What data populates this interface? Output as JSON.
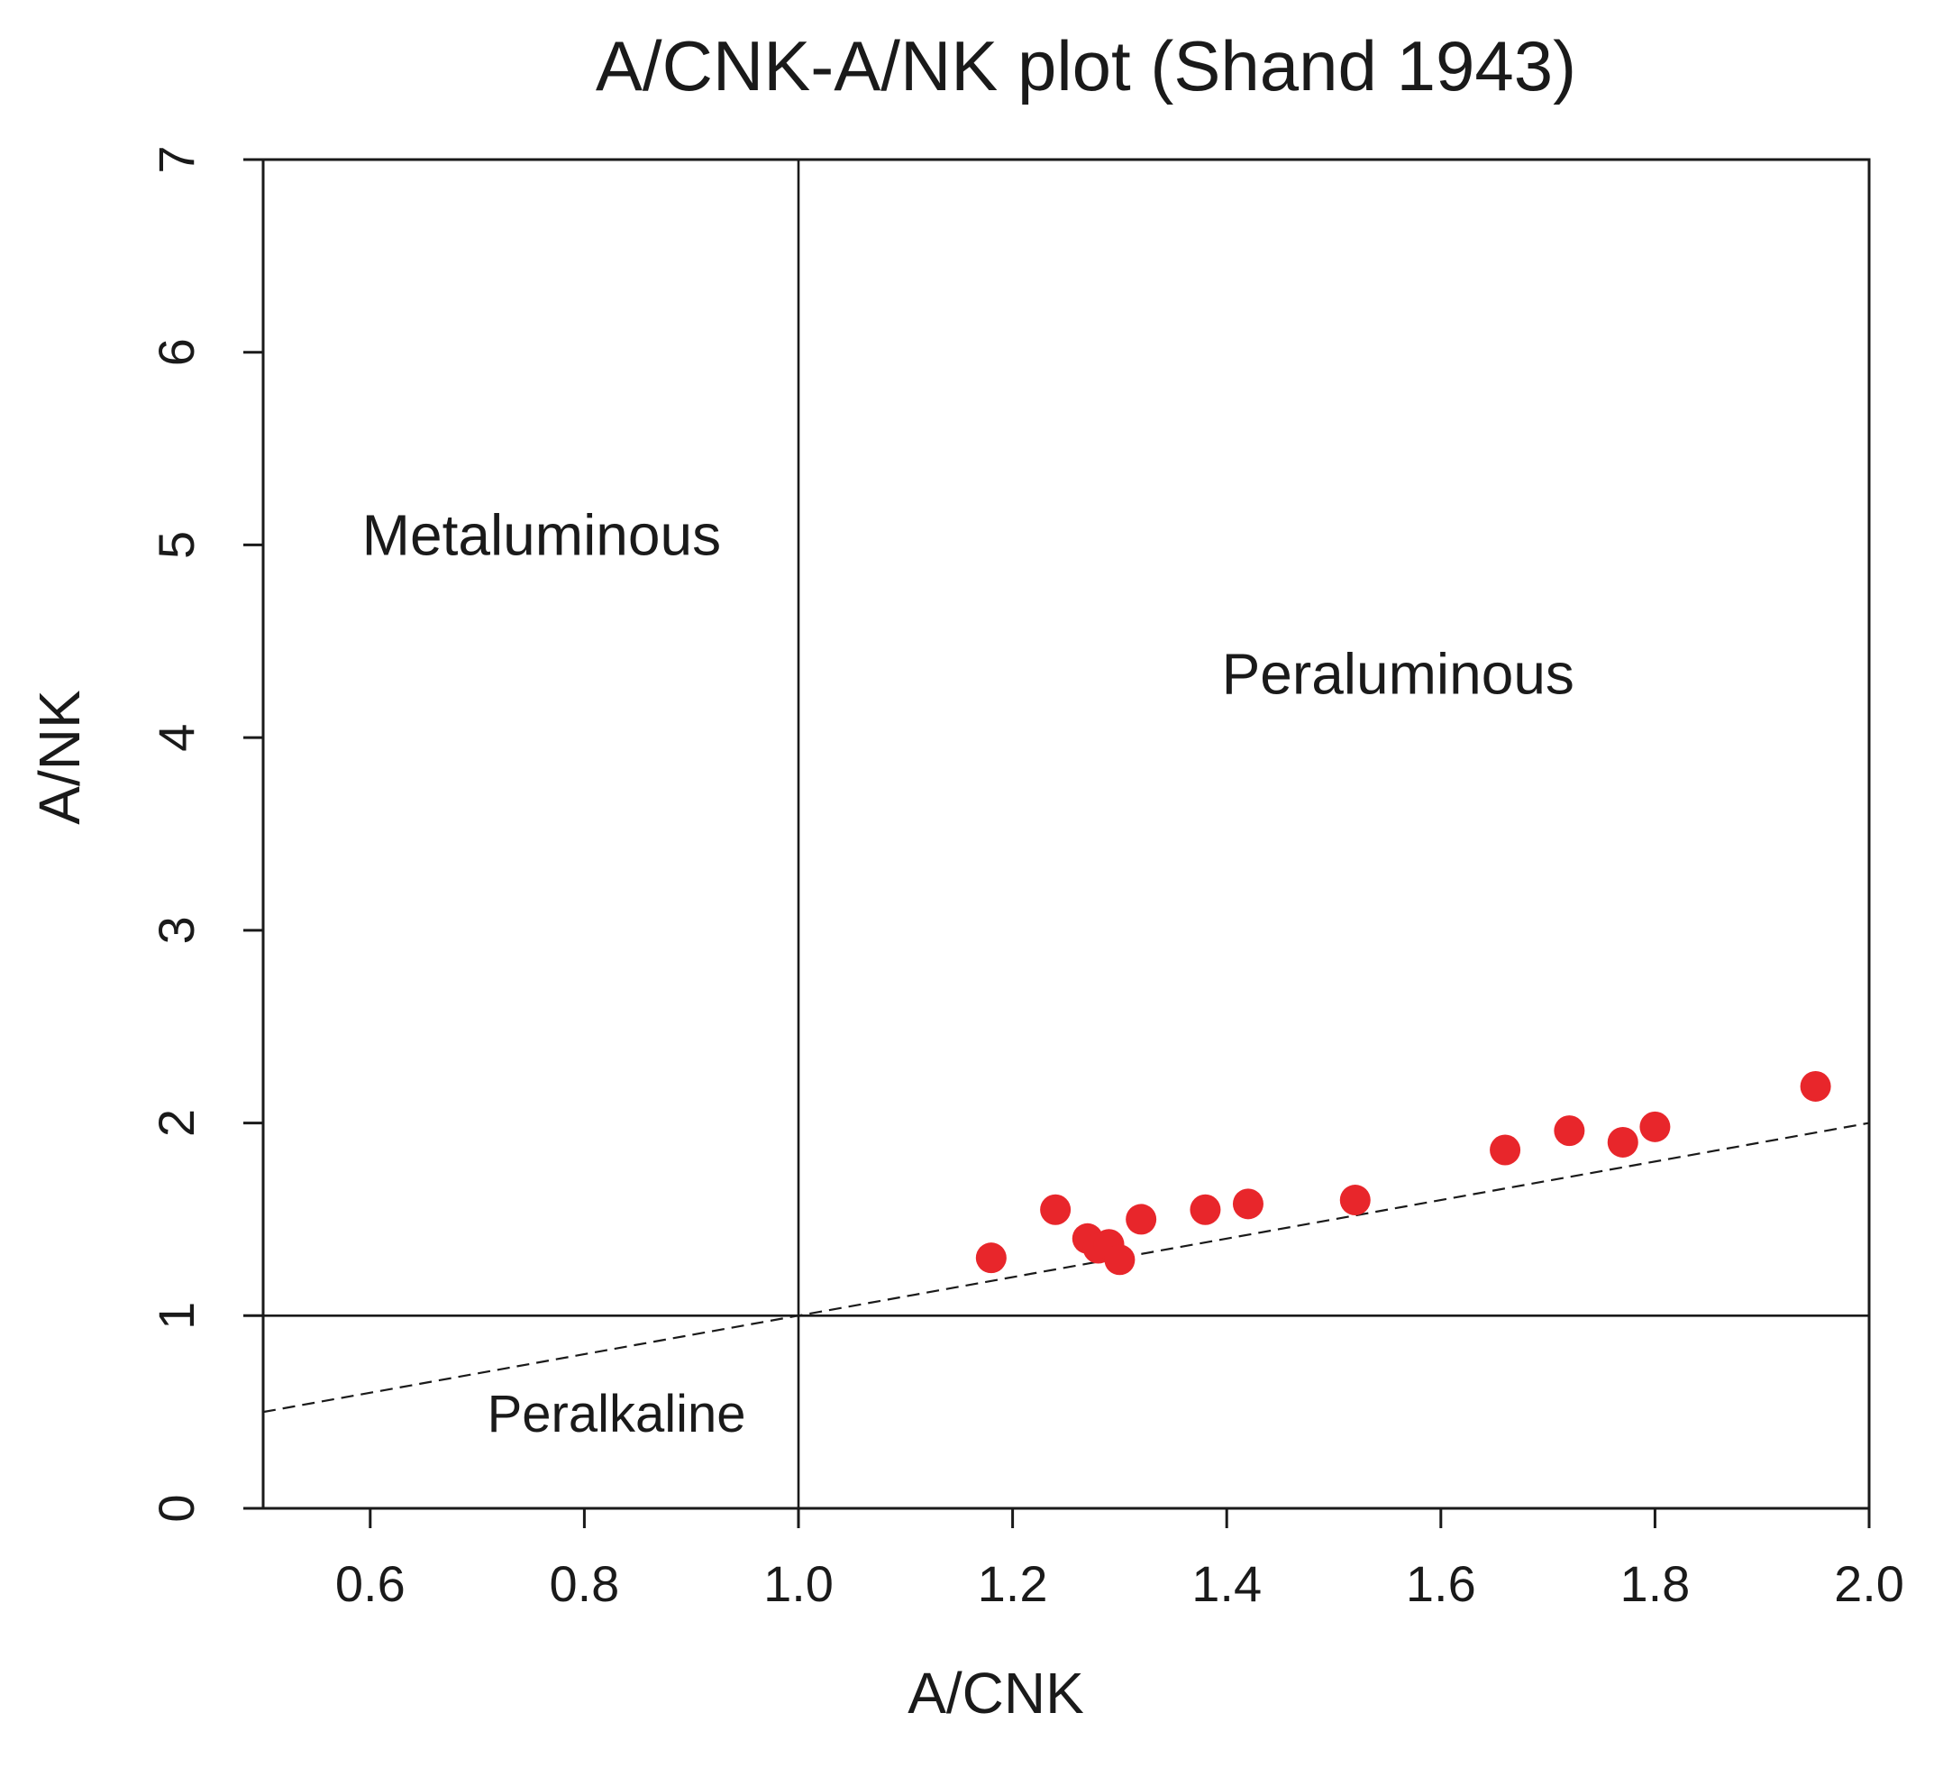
{
  "chart_data": {
    "type": "scatter",
    "title": "A/CNK-A/NK plot (Shand 1943)",
    "xlabel": "A/CNK",
    "ylabel": "A/NK",
    "xlim": [
      0.5,
      2.0
    ],
    "ylim": [
      0,
      7
    ],
    "x_ticks": [
      "0.6",
      "0.8",
      "1.0",
      "1.2",
      "1.4",
      "1.6",
      "1.8",
      "2.0"
    ],
    "x_tick_values": [
      0.6,
      0.8,
      1.0,
      1.2,
      1.4,
      1.6,
      1.8,
      2.0
    ],
    "y_ticks": [
      "0",
      "1",
      "2",
      "3",
      "4",
      "5",
      "6",
      "7"
    ],
    "y_tick_values": [
      0,
      1,
      2,
      3,
      4,
      5,
      6,
      7
    ],
    "grid": false,
    "legend": "none",
    "reference_lines": [
      {
        "orientation": "vertical",
        "x": 1.0,
        "style": "solid"
      },
      {
        "orientation": "horizontal",
        "y": 1.0,
        "style": "solid"
      },
      {
        "orientation": "diagonal",
        "from": [
          0.5,
          0.5
        ],
        "to": [
          2.0,
          2.0
        ],
        "style": "dashed"
      }
    ],
    "regions": [
      {
        "label": "Metaluminous",
        "x": 0.76,
        "y": 5.05
      },
      {
        "label": "Peraluminous",
        "x": 1.56,
        "y": 4.33
      },
      {
        "label": "Peralkaline",
        "x": 0.83,
        "y": 0.5
      }
    ],
    "series": [
      {
        "color": "#e8262b",
        "points": [
          {
            "x": 1.18,
            "y": 1.3
          },
          {
            "x": 1.24,
            "y": 1.55
          },
          {
            "x": 1.27,
            "y": 1.4
          },
          {
            "x": 1.28,
            "y": 1.35
          },
          {
            "x": 1.29,
            "y": 1.37
          },
          {
            "x": 1.3,
            "y": 1.29
          },
          {
            "x": 1.32,
            "y": 1.5
          },
          {
            "x": 1.38,
            "y": 1.55
          },
          {
            "x": 1.42,
            "y": 1.58
          },
          {
            "x": 1.52,
            "y": 1.6
          },
          {
            "x": 1.66,
            "y": 1.86
          },
          {
            "x": 1.72,
            "y": 1.96
          },
          {
            "x": 1.77,
            "y": 1.9
          },
          {
            "x": 1.8,
            "y": 1.98
          },
          {
            "x": 1.95,
            "y": 2.19
          }
        ]
      }
    ]
  }
}
